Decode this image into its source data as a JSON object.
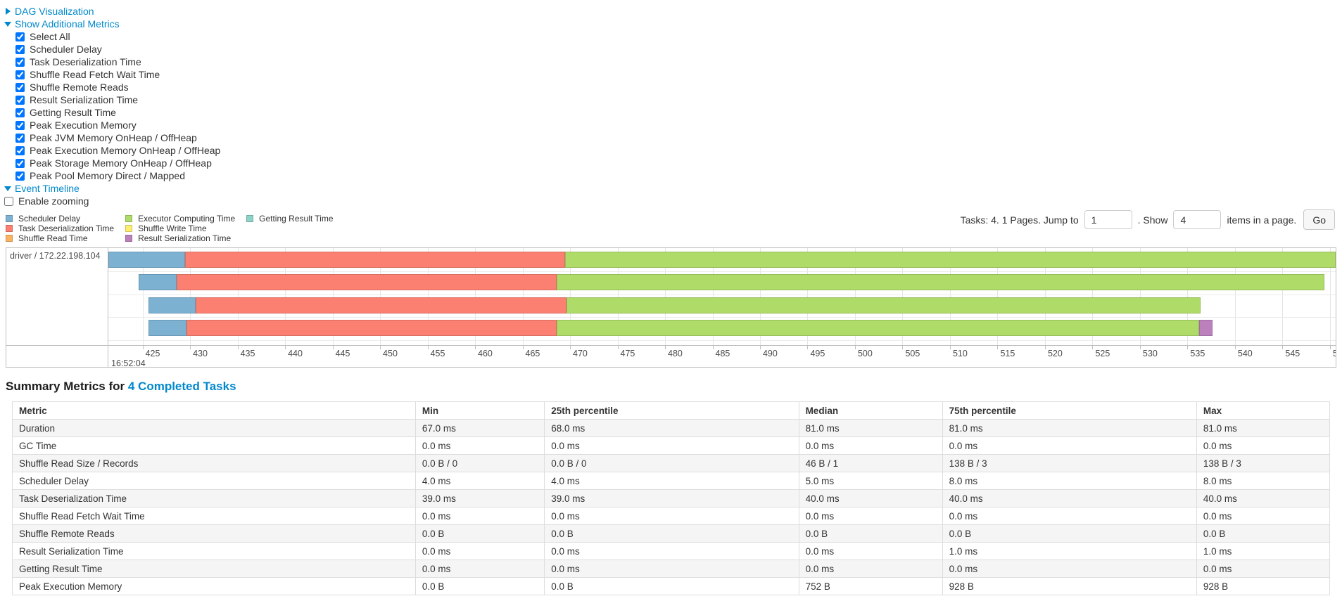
{
  "controls": {
    "dag": {
      "label": "DAG Visualization"
    },
    "additional_metrics": {
      "label": "Show Additional Metrics"
    },
    "metric_checkboxes": [
      {
        "label": "Select All",
        "checked": true
      },
      {
        "label": "Scheduler Delay",
        "checked": true
      },
      {
        "label": "Task Deserialization Time",
        "checked": true
      },
      {
        "label": "Shuffle Read Fetch Wait Time",
        "checked": true
      },
      {
        "label": "Shuffle Remote Reads",
        "checked": true
      },
      {
        "label": "Result Serialization Time",
        "checked": true
      },
      {
        "label": "Getting Result Time",
        "checked": true
      },
      {
        "label": "Peak Execution Memory",
        "checked": true
      },
      {
        "label": "Peak JVM Memory OnHeap / OffHeap",
        "checked": true
      },
      {
        "label": "Peak Execution Memory OnHeap / OffHeap",
        "checked": true
      },
      {
        "label": "Peak Storage Memory OnHeap / OffHeap",
        "checked": true
      },
      {
        "label": "Peak Pool Memory Direct / Mapped",
        "checked": true
      }
    ],
    "event_timeline": {
      "label": "Event Timeline"
    },
    "enable_zooming": {
      "label": "Enable zooming",
      "checked": false
    }
  },
  "legend": {
    "columns": [
      [
        {
          "label": "Scheduler Delay",
          "color": "#7CB1D2"
        },
        {
          "label": "Task Deserialization Time",
          "color": "#FB8072"
        },
        {
          "label": "Shuffle Read Time",
          "color": "#FDB462"
        }
      ],
      [
        {
          "label": "Executor Computing Time",
          "color": "#AFDB69"
        },
        {
          "label": "Shuffle Write Time",
          "color": "#FFED6F"
        },
        {
          "label": "Result Serialization Time",
          "color": "#BC80BD"
        }
      ],
      [
        {
          "label": "Getting Result Time",
          "color": "#8DD3C7"
        }
      ]
    ]
  },
  "pagination": {
    "prefix": "Tasks: 4. 1 Pages. Jump to",
    "jump_value": "1",
    "mid": ". Show",
    "show_value": "4",
    "suffix": "items in a page.",
    "go_label": "Go"
  },
  "timeline": {
    "group_label": "driver / 172.22.198.104",
    "axis": {
      "window_min": 421.4,
      "window_max": 550.6,
      "tick_start": 425,
      "tick_step": 5,
      "tick_end": 550,
      "major_label": "16:52:04"
    },
    "colors": {
      "scheduler_delay": "#7CB1D2",
      "task_deserialization": "#FB8072",
      "shuffle_read": "#FDB462",
      "executor_computing": "#AFDB69",
      "shuffle_write": "#FFED6F",
      "result_serialization": "#BC80BD",
      "getting_result": "#8DD3C7"
    },
    "tasks": [
      {
        "segments": [
          {
            "type": "scheduler_delay",
            "start": 421.4,
            "end": 429.5
          },
          {
            "type": "task_deserialization",
            "start": 429.5,
            "end": 469.5
          },
          {
            "type": "executor_computing",
            "start": 469.5,
            "end": 550.6
          }
        ]
      },
      {
        "segments": [
          {
            "type": "scheduler_delay",
            "start": 424.6,
            "end": 428.6
          },
          {
            "type": "task_deserialization",
            "start": 428.6,
            "end": 468.6
          },
          {
            "type": "executor_computing",
            "start": 468.6,
            "end": 549.4
          }
        ]
      },
      {
        "segments": [
          {
            "type": "scheduler_delay",
            "start": 425.6,
            "end": 430.6
          },
          {
            "type": "task_deserialization",
            "start": 430.6,
            "end": 469.6
          },
          {
            "type": "executor_computing",
            "start": 469.6,
            "end": 536.4
          }
        ]
      },
      {
        "segments": [
          {
            "type": "scheduler_delay",
            "start": 425.6,
            "end": 429.6
          },
          {
            "type": "task_deserialization",
            "start": 429.6,
            "end": 468.6
          },
          {
            "type": "executor_computing",
            "start": 468.6,
            "end": 536.2
          },
          {
            "type": "result_serialization",
            "start": 536.2,
            "end": 537.6
          }
        ]
      }
    ]
  },
  "summary": {
    "title_prefix": "Summary Metrics for",
    "title_link": "4 Completed Tasks",
    "table": {
      "headers": [
        "Metric",
        "Min",
        "25th percentile",
        "Median",
        "75th percentile",
        "Max"
      ],
      "rows": [
        [
          "Duration",
          "67.0 ms",
          "68.0 ms",
          "81.0 ms",
          "81.0 ms",
          "81.0 ms"
        ],
        [
          "GC Time",
          "0.0 ms",
          "0.0 ms",
          "0.0 ms",
          "0.0 ms",
          "0.0 ms"
        ],
        [
          "Shuffle Read Size / Records",
          "0.0 B / 0",
          "0.0 B / 0",
          "46 B / 1",
          "138 B / 3",
          "138 B / 3"
        ],
        [
          "Scheduler Delay",
          "4.0 ms",
          "4.0 ms",
          "5.0 ms",
          "8.0 ms",
          "8.0 ms"
        ],
        [
          "Task Deserialization Time",
          "39.0 ms",
          "39.0 ms",
          "40.0 ms",
          "40.0 ms",
          "40.0 ms"
        ],
        [
          "Shuffle Read Fetch Wait Time",
          "0.0 ms",
          "0.0 ms",
          "0.0 ms",
          "0.0 ms",
          "0.0 ms"
        ],
        [
          "Shuffle Remote Reads",
          "0.0 B",
          "0.0 B",
          "0.0 B",
          "0.0 B",
          "0.0 B"
        ],
        [
          "Result Serialization Time",
          "0.0 ms",
          "0.0 ms",
          "0.0 ms",
          "1.0 ms",
          "1.0 ms"
        ],
        [
          "Getting Result Time",
          "0.0 ms",
          "0.0 ms",
          "0.0 ms",
          "0.0 ms",
          "0.0 ms"
        ],
        [
          "Peak Execution Memory",
          "0.0 B",
          "0.0 B",
          "752 B",
          "928 B",
          "928 B"
        ]
      ]
    }
  }
}
